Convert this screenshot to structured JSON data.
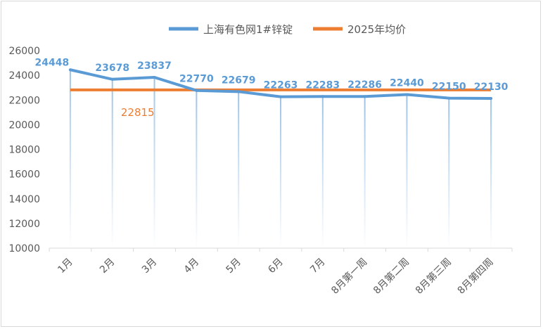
{
  "chart_data": {
    "type": "line",
    "title": "",
    "xlabel": "",
    "ylabel": "",
    "categories": [
      "1月",
      "2月",
      "3月",
      "4月",
      "5月",
      "6月",
      "7月",
      "8月第一周",
      "8月第二周",
      "8月第三周",
      "8月第四周"
    ],
    "series": [
      {
        "name": "上海有色网1#锌锭",
        "color": "#5b9bd5",
        "values": [
          24448,
          23678,
          23837,
          22770,
          22679,
          22263,
          22283,
          22286,
          22440,
          22150,
          22130
        ]
      },
      {
        "name": "2025年均价",
        "color": "#ed7d31",
        "values": [
          22815,
          22815,
          22815,
          22815,
          22815,
          22815,
          22815,
          22815,
          22815,
          22815,
          22815
        ],
        "label": "22815"
      }
    ],
    "ylim": [
      10000,
      26000
    ],
    "yticks": [
      "10000",
      "12000",
      "14000",
      "16000",
      "18000",
      "20000",
      "22000",
      "24000",
      "26000"
    ],
    "grid": false,
    "legend_position": "top"
  }
}
